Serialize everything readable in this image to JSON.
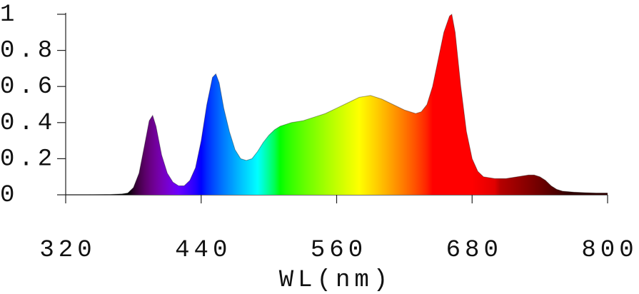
{
  "chart_data": {
    "type": "area",
    "xlabel": "WL(nm)",
    "x": [
      320,
      340,
      360,
      370,
      375,
      380,
      385,
      390,
      394,
      397,
      400,
      405,
      410,
      415,
      420,
      425,
      430,
      435,
      440,
      445,
      450,
      453,
      456,
      460,
      465,
      470,
      475,
      480,
      485,
      490,
      495,
      500,
      505,
      510,
      520,
      530,
      540,
      550,
      560,
      570,
      580,
      590,
      600,
      610,
      620,
      630,
      635,
      640,
      645,
      650,
      655,
      660,
      662,
      665,
      670,
      675,
      680,
      685,
      690,
      700,
      710,
      720,
      730,
      735,
      740,
      745,
      750,
      755,
      760,
      770,
      780,
      790,
      800
    ],
    "values": [
      0.0,
      0.0,
      0.002,
      0.005,
      0.01,
      0.04,
      0.12,
      0.28,
      0.41,
      0.44,
      0.38,
      0.22,
      0.12,
      0.07,
      0.05,
      0.05,
      0.08,
      0.15,
      0.3,
      0.5,
      0.65,
      0.67,
      0.62,
      0.48,
      0.35,
      0.25,
      0.2,
      0.19,
      0.2,
      0.24,
      0.29,
      0.33,
      0.36,
      0.38,
      0.4,
      0.41,
      0.43,
      0.45,
      0.48,
      0.51,
      0.54,
      0.55,
      0.53,
      0.5,
      0.47,
      0.45,
      0.46,
      0.5,
      0.6,
      0.75,
      0.9,
      0.99,
      1.0,
      0.9,
      0.6,
      0.35,
      0.2,
      0.13,
      0.1,
      0.09,
      0.09,
      0.1,
      0.11,
      0.11,
      0.1,
      0.08,
      0.05,
      0.03,
      0.02,
      0.015,
      0.012,
      0.01,
      0.01
    ],
    "xlim": [
      320,
      800
    ],
    "xticks": [
      320,
      440,
      560,
      680,
      800
    ],
    "ylim": [
      0,
      1
    ],
    "yticks": [
      0,
      0.2,
      0.4,
      0.6,
      0.8,
      1
    ],
    "grid": false
  }
}
